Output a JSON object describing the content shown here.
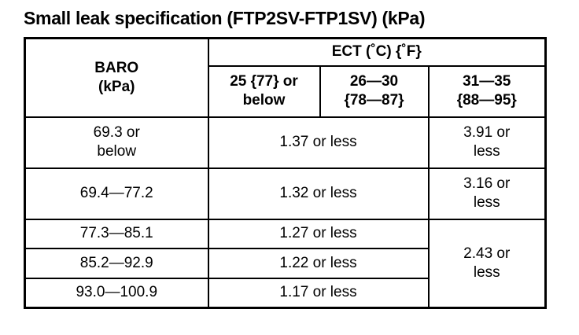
{
  "title": "Small leak specification (FTP2SV-FTP1SV) (kPa)",
  "table": {
    "baro_header": [
      "BARO",
      "(kPa)"
    ],
    "ect_header": "ECT (˚C) {˚F}",
    "ect_columns": [
      [
        "25 {77} or",
        "below"
      ],
      [
        "26—30",
        "{78—87}"
      ],
      [
        "31—35",
        "{88—95}"
      ]
    ],
    "rows": [
      {
        "baro": [
          "69.3 or",
          "below"
        ],
        "low_mid": "1.37 or less",
        "high": [
          "3.91 or",
          "less"
        ]
      },
      {
        "baro": [
          "69.4—77.2"
        ],
        "low_mid": "1.32 or less",
        "high": [
          "3.16 or",
          "less"
        ]
      },
      {
        "baro": [
          "77.3—85.1"
        ],
        "low_mid": "1.27 or less",
        "high": [
          "2.43 or",
          "less"
        ]
      },
      {
        "baro": [
          "85.2—92.9"
        ],
        "low_mid": "1.22 or less"
      },
      {
        "baro": [
          "93.0—100.9"
        ],
        "low_mid": "1.17 or less"
      }
    ]
  }
}
